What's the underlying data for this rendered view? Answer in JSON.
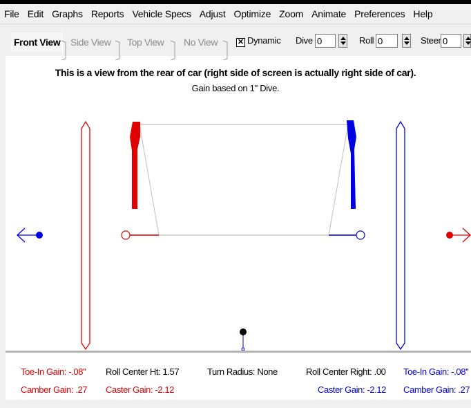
{
  "menu": [
    "File",
    "Edit",
    "Graphs",
    "Reports",
    "Vehicle Specs",
    "Adjust",
    "Optimize",
    "Zoom",
    "Animate",
    "Preferences",
    "Help"
  ],
  "tabs": {
    "front": "Front View",
    "side": "Side View",
    "top": "Top View",
    "none": "No View"
  },
  "controls": {
    "dynamic_label": "Dynamic",
    "dynamic_checked": true,
    "dive_label": "Dive",
    "dive_value": "0",
    "roll_label": "Roll",
    "roll_value": "0",
    "steer_label": "Steer",
    "steer_value": "0"
  },
  "view": {
    "title": "This is a view from the rear of car (right side of screen is actually right side of car).",
    "subtitle": "Gain based on 1'' Dive."
  },
  "readouts": {
    "left_toe": "Toe-In Gain: -.08''",
    "left_camber": "Camber Gain: .27",
    "roll_center_ht": "Roll Center Ht: 1.57",
    "left_caster": "Caster Gain: -2.12",
    "turn_radius": "Turn Radius: None",
    "roll_center_right": "Roll Center Right: .00",
    "right_caster": "Caster Gain: -2.12",
    "right_toe": "Toe-In Gain: -.08''",
    "right_camber": "Camber Gain: .27"
  },
  "colors": {
    "left": "#e00000",
    "right": "#0000e0",
    "frame": "#c8c8c8"
  }
}
